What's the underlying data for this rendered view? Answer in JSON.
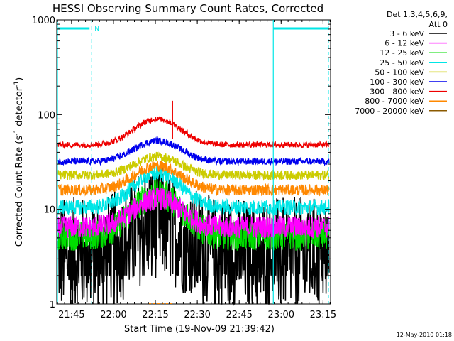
{
  "chart_data": {
    "type": "line",
    "title": "HESSI Observing Summary Count Rates, Corrected",
    "xlabel": "Start Time (19-Nov-09 21:39:42)",
    "ylabel": "Corrected Count Rate (s",
    "ylabel_sup1": "-1",
    "ylabel_mid": " detector",
    "ylabel_sup2": "-1",
    "ylabel_end": ")",
    "yscale": "log",
    "ylim": [
      1,
      1000
    ],
    "xlim_minutes_after_21_39_42": [
      0,
      98
    ],
    "x_ticks": [
      {
        "label": "21:45",
        "minutes": 5.3
      },
      {
        "label": "22:00",
        "minutes": 20.3
      },
      {
        "label": "22:15",
        "minutes": 35.3
      },
      {
        "label": "22:30",
        "minutes": 50.3
      },
      {
        "label": "22:45",
        "minutes": 65.3
      },
      {
        "label": "23:00",
        "minutes": 80.3
      },
      {
        "label": "23:15",
        "minutes": 95.3
      }
    ],
    "y_ticks": [
      {
        "label": "1",
        "value": 1
      },
      {
        "label": "10",
        "value": 10
      },
      {
        "label": "100",
        "value": 100
      },
      {
        "label": "1000",
        "value": 1000
      }
    ],
    "legend_header": [
      "Det 1,3,4,5,6,9,",
      "Att 0"
    ],
    "legend_position": "right",
    "footer_date": "12-May-2010 01:18",
    "night_marker": "N",
    "annotation_colors": {
      "night_saa": "#00e6e6",
      "axis": "#000000"
    },
    "series": [
      {
        "name": "3 - 6 keV",
        "color": "#000000",
        "base": 3.3,
        "peak": 7.5,
        "noise": 0.28
      },
      {
        "name": "6 - 12 keV",
        "color": "#ff00ff",
        "base": 6.5,
        "peak": 13,
        "noise": 0.12
      },
      {
        "name": "12 - 25 keV",
        "color": "#00dd00",
        "base": 5.3,
        "peak": 14.5,
        "noise": 0.16
      },
      {
        "name": "25 - 50 keV",
        "color": "#00e6e6",
        "base": 10.5,
        "peak": 24,
        "noise": 0.08
      },
      {
        "name": "50 - 100 keV",
        "color": "#cccc00",
        "base": 23,
        "peak": 36,
        "noise": 0.05
      },
      {
        "name": "100 - 300 keV",
        "color": "#0000ee",
        "base": 32,
        "peak": 53,
        "noise": 0.035
      },
      {
        "name": "300 - 800 keV",
        "color": "#ee0000",
        "base": 48,
        "peak": 90,
        "noise": 0.03
      },
      {
        "name": "800 - 7000 keV",
        "color": "#ff8800",
        "base": 16,
        "peak": 29,
        "noise": 0.06
      },
      {
        "name": "7000 - 20000 keV",
        "color": "#8b5a00",
        "base": 0,
        "peak": 0,
        "noise": 0
      }
    ],
    "orbit_intervals": {
      "night_start_minutes": 0,
      "night_end_minutes": 12.5,
      "day_end_minutes": 77.5,
      "night2_end_minutes": 98,
      "spike_minutes": 41.5,
      "flare_center_minutes": 36,
      "flare_width_minutes": 10.5
    }
  }
}
